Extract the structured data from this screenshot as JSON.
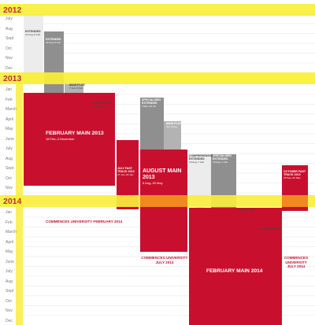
{
  "colors": {
    "year_band": "#f9ef3a",
    "year_text": "#c01a2c",
    "red": "#c8102e",
    "light_grey": "#ececec",
    "mid_grey": "#b3b3b3",
    "dark_grey": "#8f8f8f",
    "gridline": "#e3e3e3",
    "month_text": "#7a7a7a",
    "orange_overlap": "#f08a1c"
  },
  "years": [
    {
      "label": "2012",
      "months": [
        "July",
        "Aug",
        "Sept",
        "Oct",
        "Nov",
        "Dec"
      ]
    },
    {
      "label": "2013",
      "months": [
        "Jan",
        "Feb",
        "March",
        "April",
        "May",
        "June",
        "July",
        "Aug",
        "Sept",
        "Oct",
        "Nov",
        "Dec"
      ]
    },
    {
      "label": "2014",
      "months": [
        "Jan",
        "Feb",
        "March",
        "April",
        "May",
        "June",
        "July",
        "Aug",
        "Sept",
        "Oct",
        "Nov",
        "Dec"
      ]
    }
  ],
  "programs": [
    {
      "key": "extended-1",
      "color": "light",
      "title": "EXTENDED",
      "dates": "22 Aug–8 Feb"
    },
    {
      "key": "extended-2",
      "color": "dark",
      "title": "EXTENDED",
      "dates": "22 Aug–8 Feb"
    },
    {
      "key": "main-plus-1",
      "color": "mid",
      "title": "MAIN PLUS",
      "dates": "7 Jan–8 Feb"
    },
    {
      "key": "accelerated-1",
      "color": "mid",
      "title": "ACCELERATED",
      "dates": "27 Mar–12 Apr"
    },
    {
      "key": "february-main-2013",
      "color": "red",
      "title": "FEBRUARY MAIN 2013",
      "dates": "18 Feb–3 December"
    },
    {
      "key": "specialised-extended-1",
      "color": "dark",
      "title": "SPECIALISED EXTENDED",
      "dates": "4 Mar–26 Jul"
    },
    {
      "key": "main-plus-2",
      "color": "mid",
      "title": "MAIN PLUS",
      "dates": "Jul–9 Aug"
    },
    {
      "key": "july-fast-track-2013",
      "color": "red",
      "title": "JULY FAST TRACK 2013",
      "dates": "27 Jun–26 Jan"
    },
    {
      "key": "august-main-2013",
      "color": "red",
      "title": "AUGUST MAIN 2013",
      "dates": "8 Aug–30 May"
    },
    {
      "key": "comprehensive-extended",
      "color": "light",
      "title": "COMPREHENSIVE EXTENDED",
      "dates": "19 Aug–7 Feb"
    },
    {
      "key": "specialised-extended-2",
      "color": "dark",
      "title": "SPECIALISED EXTENDED",
      "dates": "19 Aug–7 Feb"
    },
    {
      "key": "october-fast-track-2013",
      "color": "red",
      "title": "OCTOBER FAST TRACK 2013",
      "dates": "26 Sep–30 May"
    },
    {
      "key": "main-plus-3",
      "color": "mid",
      "title": "MAIN PLUS",
      "dates": ""
    },
    {
      "key": "accelerated-2",
      "color": "mid",
      "title": "ACCELERATED",
      "dates": ""
    },
    {
      "key": "february-main-2014",
      "color": "red",
      "title": "FEBRUARY MAIN 2014",
      "dates": ""
    }
  ],
  "notes": [
    {
      "key": "commences-feb-2014",
      "text": "COMMENCES UNIVERSITY FEBRUARY 2014"
    },
    {
      "key": "commences-july-2014",
      "text": "COMMENCES UNIVERSITY JULY 2014"
    },
    {
      "key": "commences-july-2014-b",
      "text": "COMMENCES UNIVERSITY JULY 2014"
    }
  ]
}
